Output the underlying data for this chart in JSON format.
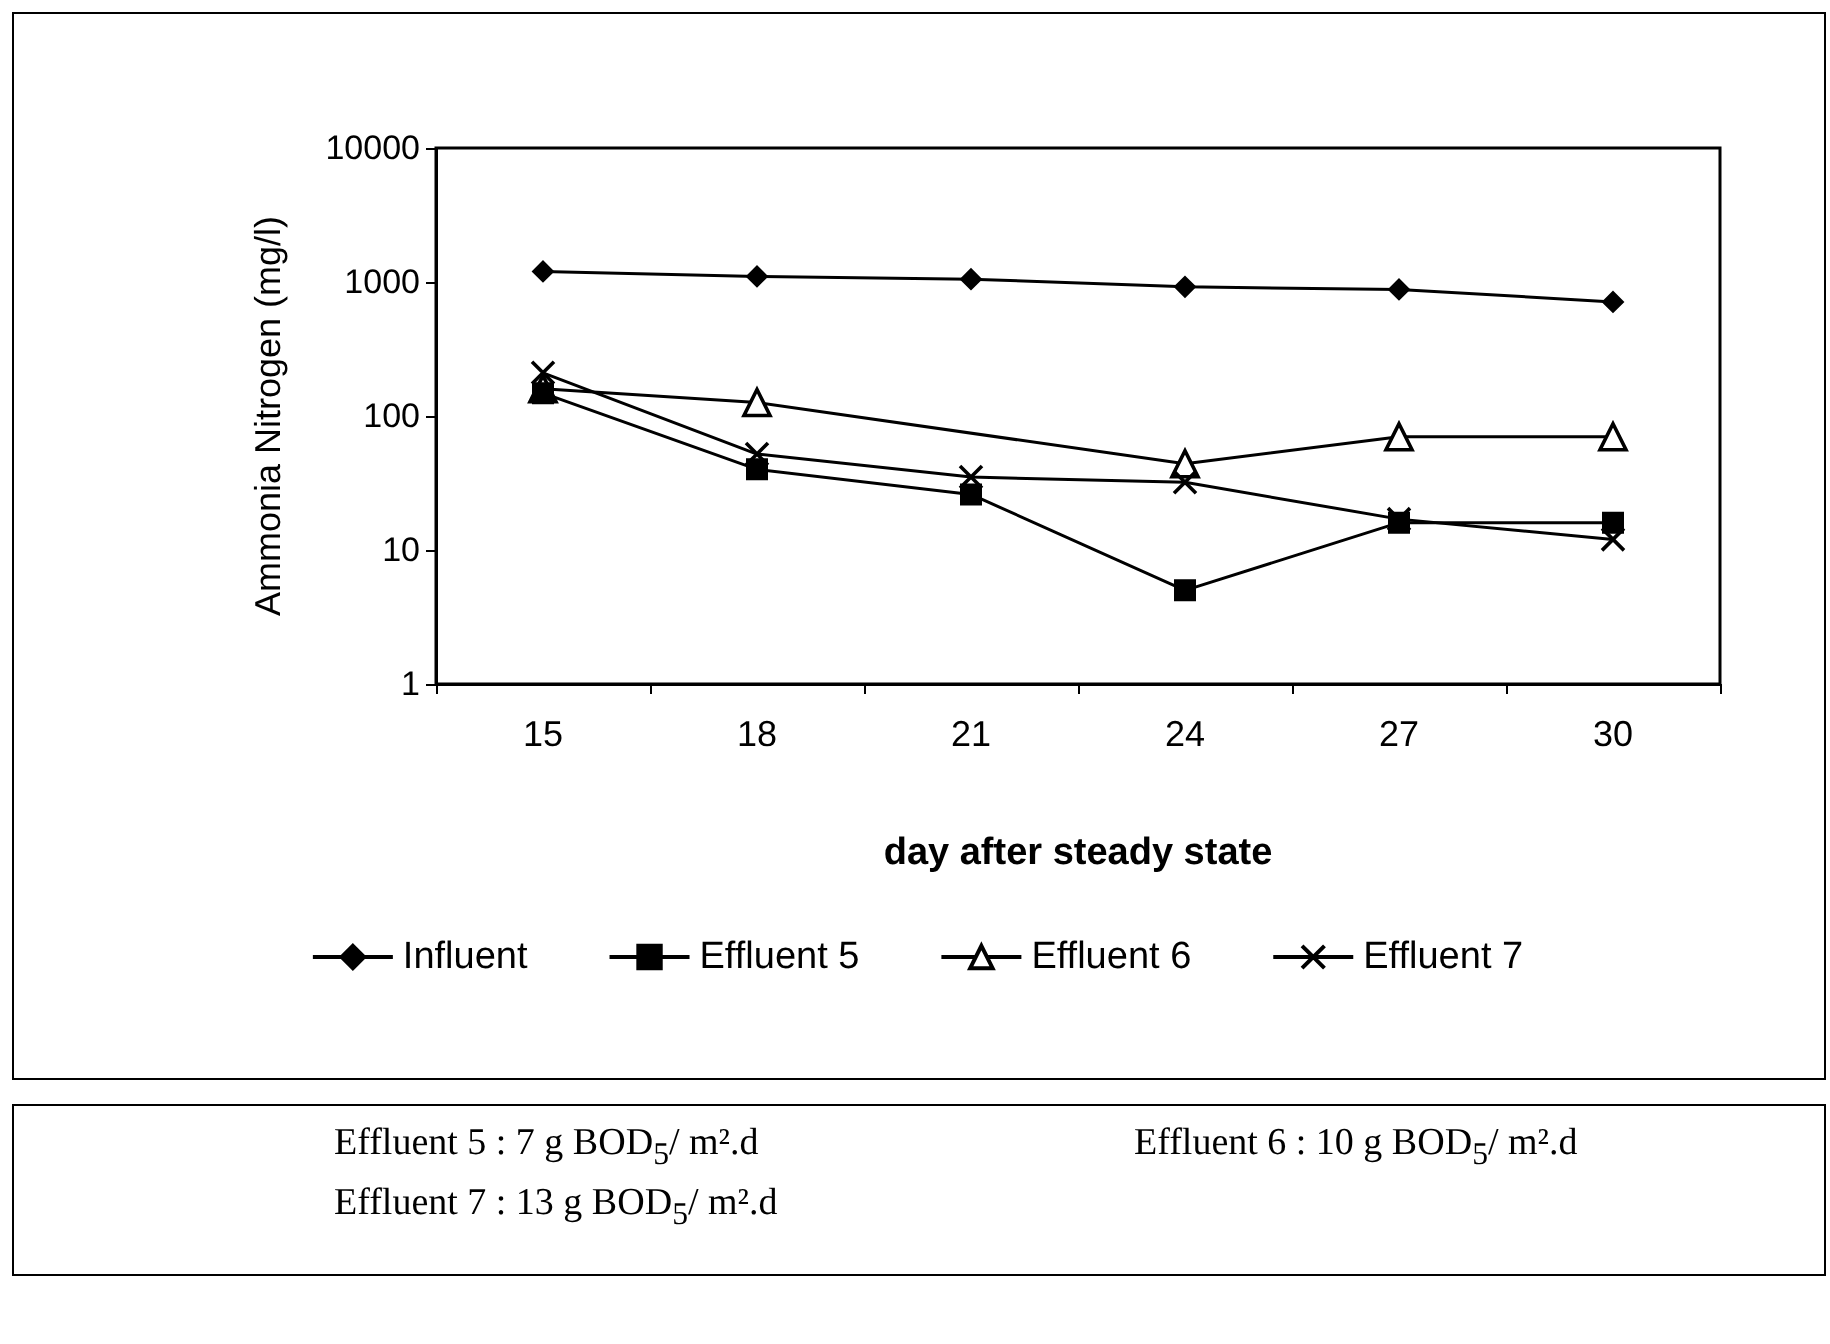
{
  "chart_data": {
    "type": "line",
    "xlabel": "day after steady state",
    "ylabel": "Ammonia Nitrogen (mg/l)",
    "categories": [
      "15",
      "18",
      "21",
      "24",
      "27",
      "30"
    ],
    "series": [
      {
        "name": "Influent",
        "color": "#000000",
        "marker": "diamond",
        "values": [
          1200,
          1100,
          1050,
          920,
          880,
          710
        ]
      },
      {
        "name": "Effluent 5",
        "color": "#000000",
        "marker": "square",
        "values": [
          148,
          40,
          26,
          5,
          16,
          16
        ]
      },
      {
        "name": "Effluent 6",
        "color": "#000000",
        "marker": "triangle",
        "values": [
          160,
          126,
          null,
          44,
          70,
          70
        ]
      },
      {
        "name": "Effluent 7",
        "color": "#000000",
        "marker": "cross",
        "values": [
          210,
          52,
          35,
          32,
          17,
          12
        ]
      }
    ],
    "log": "y",
    "ylim": [
      1,
      10000
    ],
    "yticks": [
      1,
      10,
      100,
      1000,
      10000
    ],
    "grid": false,
    "legend": "bottom",
    "annotations": [
      "Effluent 5 : 7   g BOD$_{5}$/ m².d",
      "Effluent 6 : 10 g BOD$_{5}$/ m².d",
      "Effluent 7 : 13 g BOD$_{5}$/ m².d"
    ]
  }
}
